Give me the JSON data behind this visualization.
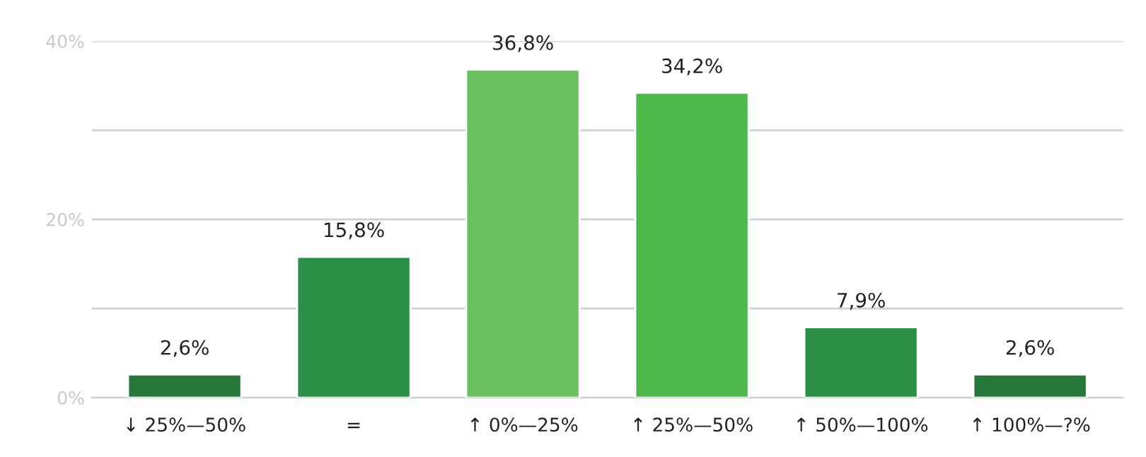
{
  "chart_data": {
    "type": "bar",
    "categories": [
      "↓ 25%—50%",
      "=",
      "↑ 0%—25%",
      "↑ 25%—50%",
      "↑ 50%—100%",
      "↑ 100%—?%"
    ],
    "values": [
      2.6,
      15.8,
      36.8,
      34.2,
      7.9,
      2.6
    ],
    "value_labels": [
      "2,6%",
      "15,8%",
      "36,8%",
      "34,2%",
      "7,9%",
      "2,6%"
    ],
    "colors": [
      "#26773a",
      "#2b8f45",
      "#6abf5e",
      "#4fb84a",
      "#2b8f45",
      "#26773a"
    ],
    "ylim": [
      0,
      40
    ],
    "yticks": [
      {
        "value": 0,
        "label": "0%"
      },
      {
        "value": 10,
        "label": null
      },
      {
        "value": 20,
        "label": "20%"
      },
      {
        "value": 30,
        "label": null
      },
      {
        "value": 40,
        "label": "40%"
      }
    ],
    "grid": "y"
  }
}
